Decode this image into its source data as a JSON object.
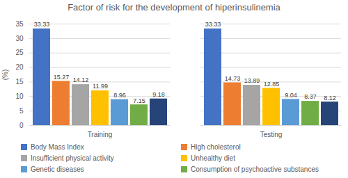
{
  "chart_data": {
    "type": "bar",
    "title": "Factor of risk for the development of hiperinsulinemia",
    "y_label": "(%)",
    "categories": [
      "Training",
      "Testing"
    ],
    "series": [
      {
        "name": "Body Mass Index",
        "color": "#4472c4",
        "values": [
          33.33,
          33.33
        ]
      },
      {
        "name": "High cholesterol",
        "color": "#ed7d31",
        "values": [
          15.27,
          14.73
        ]
      },
      {
        "name": "Insufficient physical activity",
        "color": "#a5a5a5",
        "values": [
          14.12,
          13.89
        ]
      },
      {
        "name": "Unhealthy diet",
        "color": "#ffc000",
        "values": [
          11.99,
          12.85
        ]
      },
      {
        "name": "Genetic diseases",
        "color": "#5b9bd5",
        "values": [
          8.96,
          9.04
        ]
      },
      {
        "name": "Consumption of psychoactive substances",
        "color": "#70ad47",
        "values": [
          7.15,
          8.37
        ]
      },
      {
        "name": null,
        "color": "#264478",
        "values": [
          9.18,
          8.12
        ]
      }
    ],
    "ylim": [
      0,
      35
    ],
    "yticks": [
      0,
      5,
      10,
      15,
      20,
      25,
      30,
      35
    ],
    "grid": true,
    "data_labels": true,
    "legend": "bottom"
  }
}
